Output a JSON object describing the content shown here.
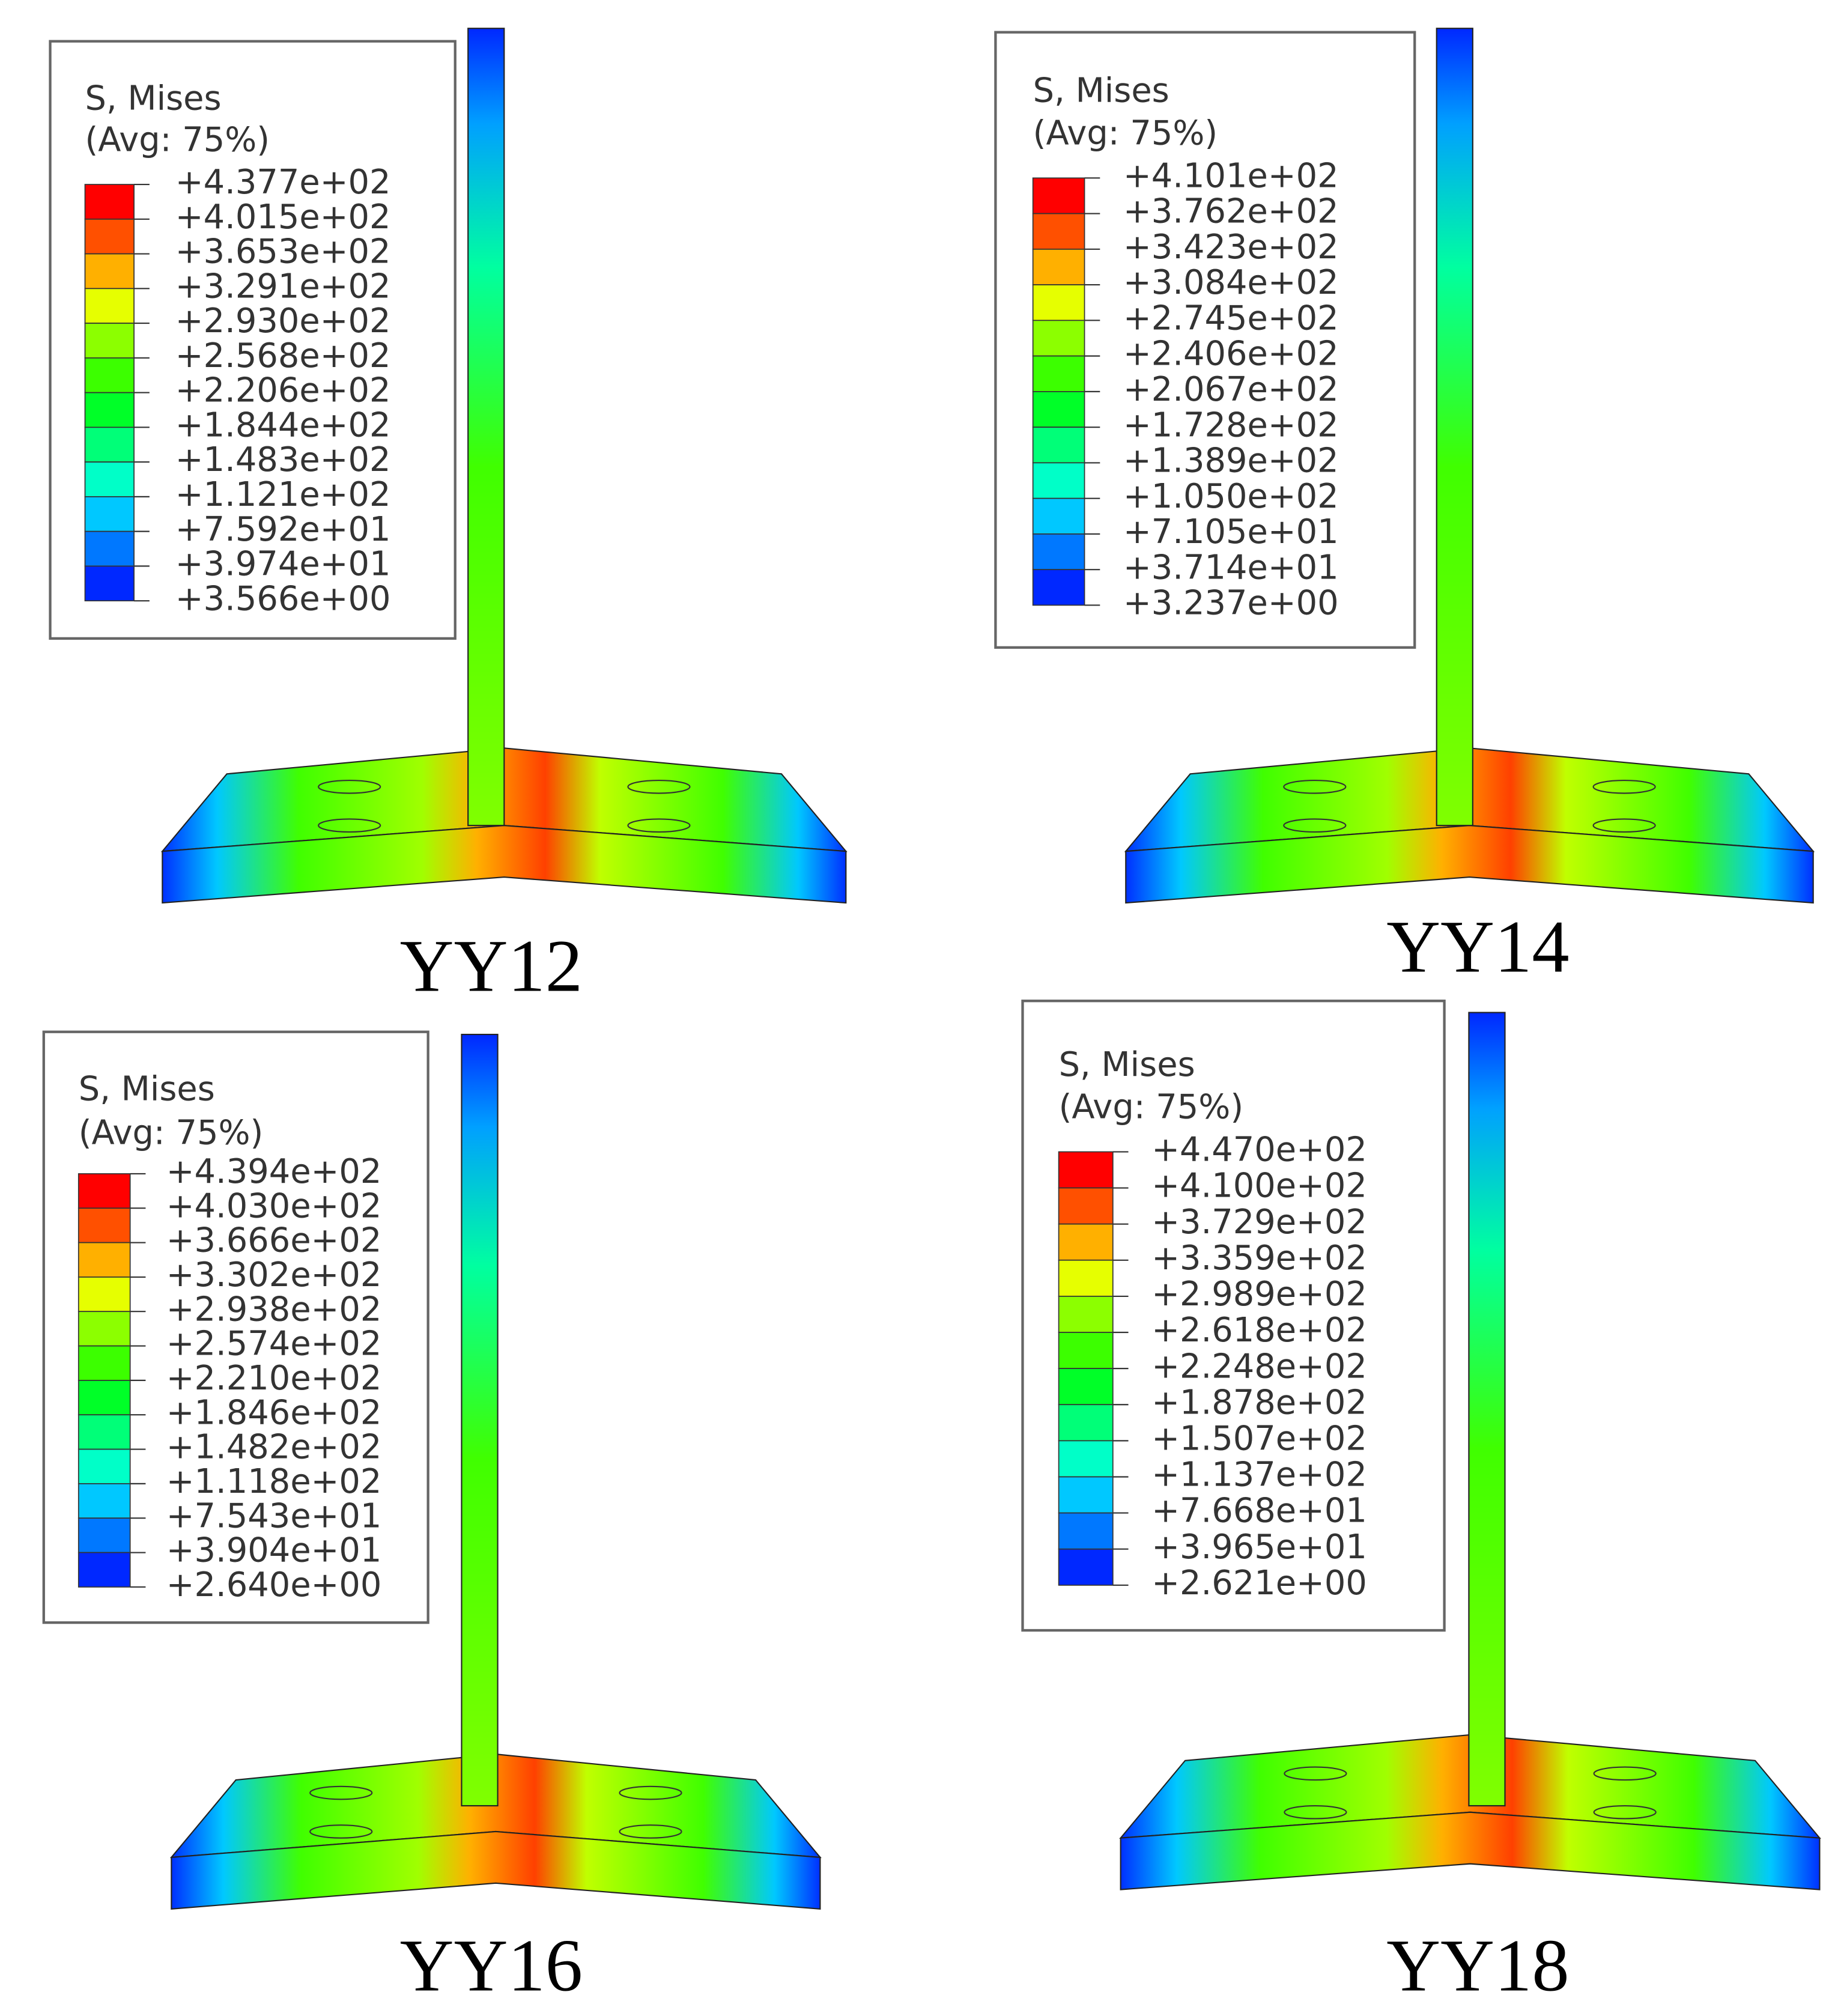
{
  "panels": [
    {
      "legend_title": "S, Mises",
      "legend_subtitle": "(Avg: 75%)",
      "levels": [
        "+4.377e+02",
        "+4.015e+02",
        "+3.653e+02",
        "+3.291e+02",
        "+2.930e+02",
        "+2.568e+02",
        "+2.206e+02",
        "+1.844e+02",
        "+1.483e+02",
        "+1.121e+02",
        "+7.592e+01",
        "+3.974e+01",
        "+3.566e+00"
      ],
      "caption": "YY12"
    },
    {
      "legend_title": "S, Mises",
      "legend_subtitle": "(Avg: 75%)",
      "levels": [
        "+4.101e+02",
        "+3.762e+02",
        "+3.423e+02",
        "+3.084e+02",
        "+2.745e+02",
        "+2.406e+02",
        "+2.067e+02",
        "+1.728e+02",
        "+1.389e+02",
        "+1.050e+02",
        "+7.105e+01",
        "+3.714e+01",
        "+3.237e+00"
      ],
      "caption": "YY14"
    },
    {
      "legend_title": "S, Mises",
      "legend_subtitle": "(Avg: 75%)",
      "levels": [
        "+4.394e+02",
        "+4.030e+02",
        "+3.666e+02",
        "+3.302e+02",
        "+2.938e+02",
        "+2.574e+02",
        "+2.210e+02",
        "+1.846e+02",
        "+1.482e+02",
        "+1.118e+02",
        "+7.543e+01",
        "+3.904e+01",
        "+2.640e+00"
      ],
      "caption": "YY16"
    },
    {
      "legend_title": "S, Mises",
      "legend_subtitle": "(Avg: 75%)",
      "levels": [
        "+4.470e+02",
        "+4.100e+02",
        "+3.729e+02",
        "+3.359e+02",
        "+2.989e+02",
        "+2.618e+02",
        "+2.248e+02",
        "+1.878e+02",
        "+1.507e+02",
        "+1.137e+02",
        "+7.668e+01",
        "+3.965e+01",
        "+2.621e+00"
      ],
      "caption": "YY18"
    }
  ]
}
